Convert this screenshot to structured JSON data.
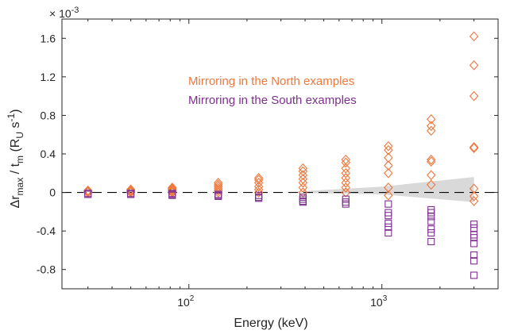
{
  "chart_data": {
    "type": "scatter",
    "x_scale": "log",
    "xlim": [
      22,
      4000
    ],
    "ylim": [
      -0.001,
      0.0018
    ],
    "xlabel": "Energy (keV)",
    "ylabel_parts": {
      "delta": "Δr",
      "sub_max": "max",
      "mid": " / t",
      "sub_m": "m",
      "paren_open": " (R",
      "sub_U": "U",
      "s_part": " s",
      "sup_exp": "-1",
      "paren_close": ")"
    },
    "exponent_label": "× 10",
    "exponent_value": "-3",
    "x_ticks": [
      {
        "value": 100,
        "base": "10",
        "exp": "2"
      },
      {
        "value": 1000,
        "base": "10",
        "exp": "3"
      }
    ],
    "y_ticks": [
      {
        "value": -0.0008,
        "label": "-0.8"
      },
      {
        "value": -0.0004,
        "label": "-0.4"
      },
      {
        "value": 0,
        "label": "0"
      },
      {
        "value": 0.0004,
        "label": "0.4"
      },
      {
        "value": 0.0008,
        "label": "0.8"
      },
      {
        "value": 0.0012,
        "label": "1.2"
      },
      {
        "value": 0.0016,
        "label": "1.6"
      }
    ],
    "grid": false,
    "zero_line": {
      "style": "dashed",
      "color": "#000000"
    },
    "shaded_band": {
      "color": "#d9d9d9",
      "points_upper": [
        [
          300,
          0.0
        ],
        [
          1000,
          6e-05
        ],
        [
          3000,
          0.00016
        ]
      ],
      "points_lower": [
        [
          300,
          0.0
        ],
        [
          1000,
          -2e-05
        ],
        [
          3000,
          -0.0001
        ]
      ]
    },
    "series": [
      {
        "name": "Mirroring in the North examples",
        "color": "#f0783c",
        "marker": "diamond",
        "points": [
          [
            30,
            0.0
          ],
          [
            30,
            1e-05
          ],
          [
            30,
            2e-05
          ],
          [
            50,
            0.0
          ],
          [
            50,
            1e-05
          ],
          [
            50,
            2e-05
          ],
          [
            50,
            3e-05
          ],
          [
            82,
            0.0
          ],
          [
            82,
            1e-05
          ],
          [
            82,
            2e-05
          ],
          [
            82,
            3e-05
          ],
          [
            82,
            4e-05
          ],
          [
            82,
            5e-05
          ],
          [
            142,
            0.0
          ],
          [
            142,
            2e-05
          ],
          [
            142,
            4e-05
          ],
          [
            142,
            6e-05
          ],
          [
            142,
            8e-05
          ],
          [
            142,
            0.0001
          ],
          [
            230,
            0.0
          ],
          [
            230,
            3e-05
          ],
          [
            230,
            6e-05
          ],
          [
            230,
            0.0001
          ],
          [
            230,
            0.00013
          ],
          [
            230,
            0.00015
          ],
          [
            390,
            0.0
          ],
          [
            390,
            5e-05
          ],
          [
            390,
            0.0001
          ],
          [
            390,
            0.00014
          ],
          [
            390,
            0.00018
          ],
          [
            390,
            0.00022
          ],
          [
            390,
            0.00025
          ],
          [
            650,
            0.0
          ],
          [
            650,
            5e-05
          ],
          [
            650,
            0.0001
          ],
          [
            650,
            0.00015
          ],
          [
            650,
            0.0002
          ],
          [
            650,
            0.00025
          ],
          [
            650,
            0.00031
          ],
          [
            650,
            0.00034
          ],
          [
            1080,
            -3e-05
          ],
          [
            1080,
            5e-05
          ],
          [
            1080,
            0.0002
          ],
          [
            1080,
            0.00028
          ],
          [
            1080,
            0.00036
          ],
          [
            1080,
            0.00044
          ],
          [
            1080,
            0.00048
          ],
          [
            1800,
            8e-05
          ],
          [
            1800,
            0.00018
          ],
          [
            1800,
            0.00032
          ],
          [
            1800,
            0.00034
          ],
          [
            1800,
            0.00064
          ],
          [
            1800,
            0.00069
          ],
          [
            1800,
            0.00076
          ],
          [
            3000,
            -9e-05
          ],
          [
            3000,
            -4e-05
          ],
          [
            3000,
            4e-05
          ],
          [
            3000,
            0.00046
          ],
          [
            3000,
            0.00047
          ],
          [
            3000,
            0.001
          ],
          [
            3000,
            0.00132
          ],
          [
            3000,
            0.00162
          ]
        ]
      },
      {
        "name": "Mirroring in the South examples",
        "color": "#7e2f8e",
        "marker": "square",
        "points": [
          [
            30,
            -1e-05
          ],
          [
            30,
            -2e-05
          ],
          [
            50,
            -1e-05
          ],
          [
            50,
            -2e-05
          ],
          [
            82,
            -1e-05
          ],
          [
            82,
            -2e-05
          ],
          [
            82,
            -3e-05
          ],
          [
            142,
            -2e-05
          ],
          [
            142,
            -3e-05
          ],
          [
            142,
            -4e-05
          ],
          [
            230,
            -3e-05
          ],
          [
            230,
            -5e-05
          ],
          [
            230,
            -6e-05
          ],
          [
            390,
            -5e-05
          ],
          [
            390,
            -7e-05
          ],
          [
            390,
            -9e-05
          ],
          [
            390,
            -0.0001
          ],
          [
            650,
            -7e-05
          ],
          [
            650,
            -0.0001
          ],
          [
            650,
            -0.00012
          ],
          [
            1080,
            -0.00012
          ],
          [
            1080,
            -0.00021
          ],
          [
            1080,
            -0.00024
          ],
          [
            1080,
            -0.00032
          ],
          [
            1080,
            -0.00036
          ],
          [
            1080,
            -0.00042
          ],
          [
            1800,
            -0.00018
          ],
          [
            1800,
            -0.00021
          ],
          [
            1800,
            -0.00025
          ],
          [
            1800,
            -0.0003
          ],
          [
            1800,
            -0.00038
          ],
          [
            1800,
            -0.00042
          ],
          [
            1800,
            -0.00051
          ],
          [
            3000,
            -0.00033
          ],
          [
            3000,
            -0.00037
          ],
          [
            3000,
            -0.00044
          ],
          [
            3000,
            -0.00047
          ],
          [
            3000,
            -0.00053
          ],
          [
            3000,
            -0.00065
          ],
          [
            3000,
            -0.00071
          ],
          [
            3000,
            -0.00086
          ]
        ]
      }
    ],
    "legend": {
      "placement": "top-center",
      "entries": [
        {
          "text": "Mirroring in the North examples",
          "color": "#f0783c"
        },
        {
          "text": "Mirroring in the South examples",
          "color": "#7e2f8e"
        }
      ]
    }
  }
}
